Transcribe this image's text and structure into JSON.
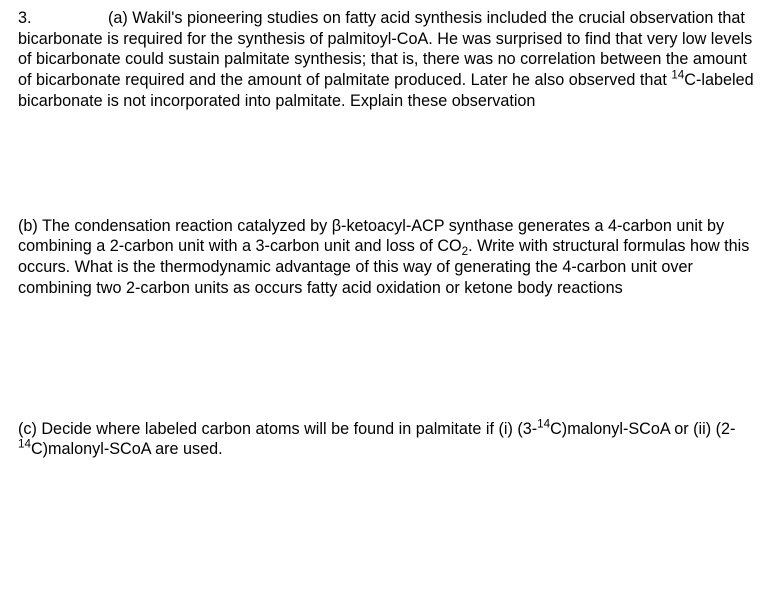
{
  "q": {
    "number": "3.",
    "a_label": "(a)",
    "a_text_1": "Wakil's pioneering studies on fatty acid synthesis included the crucial observation that bicarbonate is required for the synthesis of palmitoyl-CoA. He was surprised to find that very low levels of bicarbonate could sustain palmitate synthesis; that is, there was no correlation between the amount of bicarbonate required and the amount of palmitate produced. Later he also observed that ",
    "a_sup": "14",
    "a_text_2": "C-labeled bicarbonate is not incorporated into palmitate. Explain these observation",
    "b_text_1": "(b) The condensation reaction catalyzed by β-ketoacyl-ACP synthase generates a 4-carbon unit by combining a 2-carbon unit with a 3-carbon unit and loss of CO",
    "b_sub": "2",
    "b_text_2": ". Write with structural formulas how this occurs.   What is the thermodynamic advantage of this way of generating the 4-carbon unit over combining two 2-carbon units as occurs fatty acid oxidation or ketone body reactions",
    "c_text_1": "(c) Decide where labeled carbon atoms will be found in palmitate if (i) (3-",
    "c_sup1": "14",
    "c_text_2": "C)malonyl-SCoA or (ii) (2-",
    "c_sup2": "14",
    "c_text_3": "C)malonyl-SCoA  are used."
  }
}
